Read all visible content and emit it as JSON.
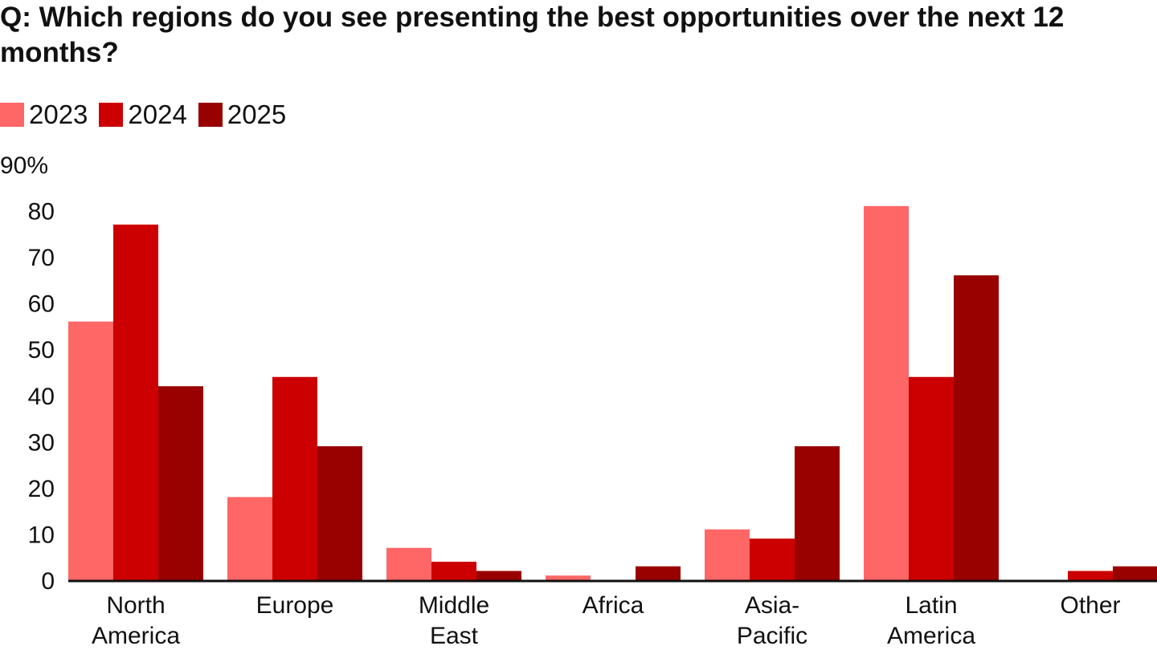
{
  "chart_data": {
    "type": "bar",
    "title": "Q: Which regions do you see presenting the best opportunities over the next 12 months?",
    "categories": [
      [
        "North",
        "America"
      ],
      [
        "Europe"
      ],
      [
        "Middle",
        "East"
      ],
      [
        "Africa"
      ],
      [
        "Asia-",
        "Pacific"
      ],
      [
        "Latin",
        "America"
      ],
      [
        "Other"
      ]
    ],
    "series": [
      {
        "name": "2023",
        "color": "#ff6666",
        "values": [
          56,
          18,
          7,
          1,
          11,
          81,
          0
        ]
      },
      {
        "name": "2024",
        "color": "#cc0000",
        "values": [
          77,
          44,
          4,
          0,
          9,
          44,
          2
        ]
      },
      {
        "name": "2025",
        "color": "#990000",
        "values": [
          42,
          29,
          2,
          3,
          29,
          66,
          3
        ]
      }
    ],
    "yticks": [
      "0",
      "10",
      "20",
      "30",
      "40",
      "50",
      "60",
      "70",
      "80",
      "90%"
    ],
    "ylim": [
      0,
      90
    ],
    "grid": false,
    "legend": "top-left"
  }
}
